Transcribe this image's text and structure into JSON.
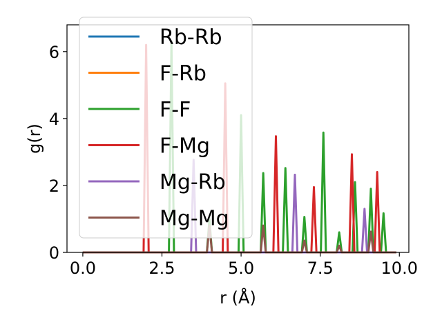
{
  "chart_data": {
    "type": "line",
    "xlabel": "r (Å)",
    "ylabel": "g(r)",
    "xlim": [
      -0.5,
      10.3
    ],
    "ylim": [
      0,
      6.8
    ],
    "x_ticks": [
      0.0,
      2.5,
      5.0,
      7.5,
      10.0
    ],
    "x_tick_labels": [
      "0.0",
      "2.5",
      "5.0",
      "7.5",
      "10.0"
    ],
    "y_ticks": [
      0,
      2,
      4,
      6
    ],
    "y_tick_labels": [
      "0",
      "2",
      "4",
      "6"
    ],
    "x_range": [
      0.0,
      9.9
    ],
    "peak_half_width": 0.08,
    "legend_position": "upper-left",
    "grid": false,
    "series": [
      {
        "name": "Rb-Rb",
        "color": "#1f77b4",
        "peaks": []
      },
      {
        "name": "F-Rb",
        "color": "#ff7f0e",
        "peaks": []
      },
      {
        "name": "F-F",
        "color": "#2ca02c",
        "peaks": [
          [
            2.8,
            6.3
          ],
          [
            4.0,
            1.0
          ],
          [
            5.0,
            4.1
          ],
          [
            5.7,
            2.37
          ],
          [
            6.4,
            2.52
          ],
          [
            7.0,
            1.06
          ],
          [
            7.6,
            3.58
          ],
          [
            8.1,
            0.6
          ],
          [
            8.6,
            2.1
          ],
          [
            9.1,
            1.9
          ],
          [
            9.5,
            1.17
          ]
        ]
      },
      {
        "name": "F-Mg",
        "color": "#d62728",
        "peaks": [
          [
            2.0,
            6.2
          ],
          [
            4.5,
            5.05
          ],
          [
            6.1,
            3.47
          ],
          [
            7.3,
            1.95
          ],
          [
            8.5,
            2.93
          ],
          [
            9.3,
            2.4
          ]
        ]
      },
      {
        "name": "Mg-Rb",
        "color": "#9467bd",
        "peaks": [
          [
            3.5,
            2.77
          ],
          [
            6.7,
            2.32
          ],
          [
            8.9,
            1.3
          ]
        ]
      },
      {
        "name": "Mg-Mg",
        "color": "#8c564b",
        "peaks": [
          [
            4.0,
            0.8
          ],
          [
            5.7,
            0.8
          ],
          [
            7.0,
            0.35
          ],
          [
            8.1,
            0.2
          ],
          [
            9.1,
            0.62
          ]
        ]
      }
    ]
  }
}
